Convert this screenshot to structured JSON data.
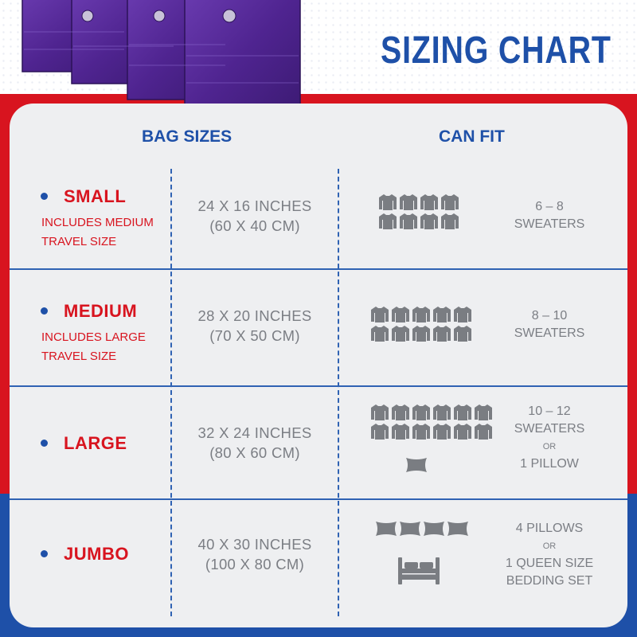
{
  "title": "SIZING CHART",
  "headers": {
    "bag_sizes": "BAG SIZES",
    "can_fit": "CAN FIT"
  },
  "rows": [
    {
      "name": "SMALL",
      "note_line1": "INCLUDES MEDIUM",
      "note_line2": "TRAVEL SIZE",
      "dim_in": "24 X 16 INCHES",
      "dim_cm": "(60 X 40 CM)",
      "fit_line1": "6 – 8",
      "fit_line2": "SWEATERS",
      "icons": {
        "sweater_rows": 2,
        "sweaters_per_row": 4
      }
    },
    {
      "name": "MEDIUM",
      "note_line1": "INCLUDES LARGE",
      "note_line2": "TRAVEL SIZE",
      "dim_in": "28 X 20 INCHES",
      "dim_cm": "(70 X 50 CM)",
      "fit_line1": "8 – 10",
      "fit_line2": "SWEATERS",
      "icons": {
        "sweater_rows": 2,
        "sweaters_per_row": 5
      }
    },
    {
      "name": "LARGE",
      "dim_in": "32 X 24 INCHES",
      "dim_cm": "(80 X 60 CM)",
      "fit_line1": "10 – 12",
      "fit_line2": "SWEATERS",
      "fit_or": "OR",
      "fit_line3": "1 PILLOW",
      "icons": {
        "sweater_rows": 2,
        "sweaters_per_row": 6,
        "pillows": 1
      }
    },
    {
      "name": "JUMBO",
      "dim_in": "40 X 30 INCHES",
      "dim_cm": "(100 X 80 CM)",
      "fit_line1": "4 PILLOWS",
      "fit_or": "OR",
      "fit_line2": "1 QUEEN SIZE",
      "fit_line3": "BEDDING SET",
      "icons": {
        "pillows": 4,
        "bed": 1
      }
    }
  ],
  "icon_names": [
    "sweater-icon",
    "pillow-icon",
    "bed-icon"
  ],
  "colors": {
    "blue": "#1e50a8",
    "red": "#d8141f",
    "gray_text": "#7b7e84",
    "card": "#eeeff1",
    "icon": "#7a7d82",
    "bag_purple": "#5b2f9a"
  }
}
